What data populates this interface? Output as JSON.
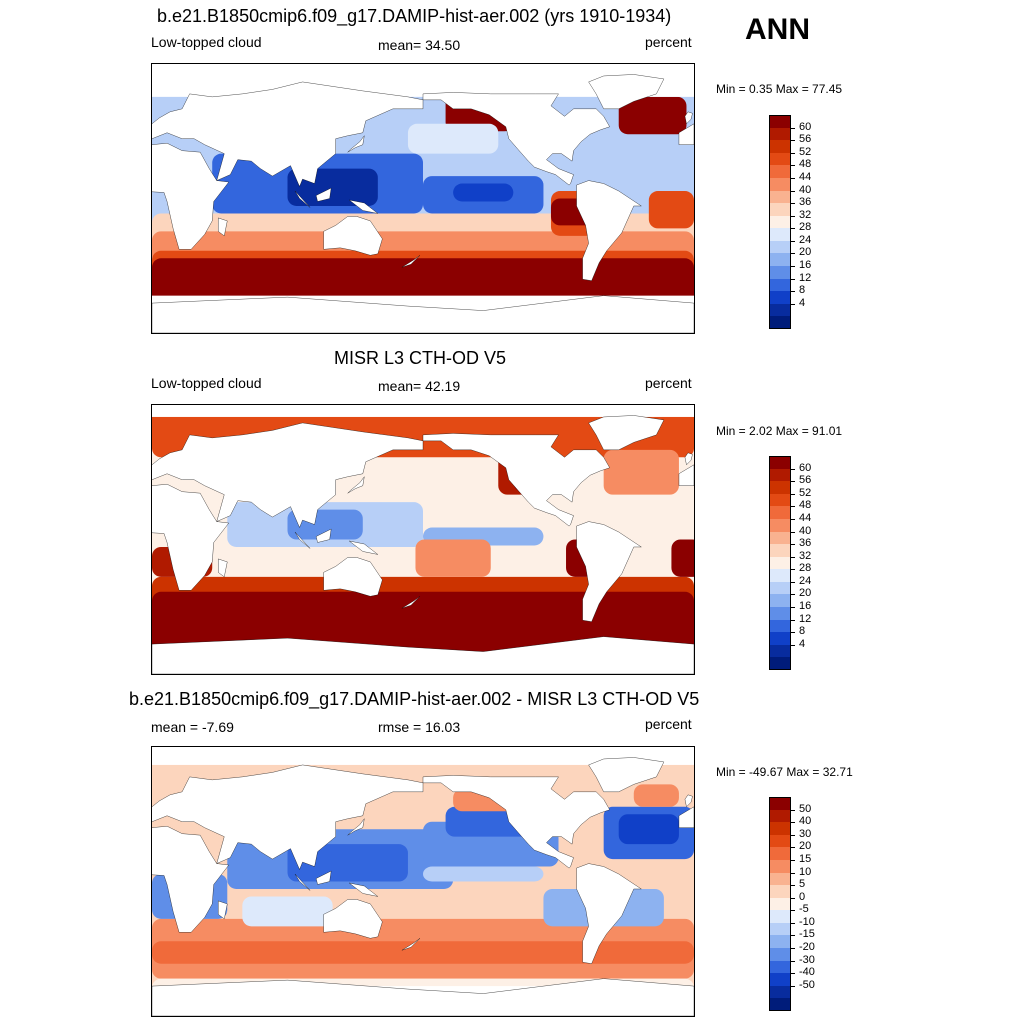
{
  "season": "ANN",
  "panels": [
    {
      "title": "b.e21.B1850cmip6.f09_g17.DAMIP-hist-aer.002 (yrs 1910-1934)",
      "left_label": "Low-topped cloud",
      "center_label": "mean=  34.50",
      "right_label": "percent",
      "minmax": "Min =   0.35 Max =  77.45",
      "colorbar": {
        "labels": [
          "60",
          "56",
          "52",
          "48",
          "44",
          "40",
          "36",
          "32",
          "28",
          "24",
          "20",
          "16",
          "12",
          "8",
          "4"
        ],
        "colors": [
          "#8b0000",
          "#b01a00",
          "#cc3300",
          "#e34a14",
          "#f06a3a",
          "#f68c62",
          "#f9b290",
          "#fcd5bd",
          "#fdf0e6",
          "#dde9fb",
          "#b7cff7",
          "#8db2f0",
          "#5f8ee8",
          "#3366dd",
          "#1040c8",
          "#082c9e",
          "#001c7a"
        ]
      },
      "map": {
        "variant": "model"
      }
    },
    {
      "title": "MISR L3 CTH-OD V5",
      "left_label": "Low-topped cloud",
      "center_label": "mean=  42.19",
      "right_label": "percent",
      "minmax": "Min =   2.02 Max =  91.01",
      "colorbar": {
        "labels": [
          "60",
          "56",
          "52",
          "48",
          "44",
          "40",
          "36",
          "32",
          "28",
          "24",
          "20",
          "16",
          "12",
          "8",
          "4"
        ],
        "colors": [
          "#8b0000",
          "#b01a00",
          "#cc3300",
          "#e34a14",
          "#f06a3a",
          "#f68c62",
          "#f9b290",
          "#fcd5bd",
          "#fdf0e6",
          "#dde9fb",
          "#b7cff7",
          "#8db2f0",
          "#5f8ee8",
          "#3366dd",
          "#1040c8",
          "#082c9e",
          "#001c7a"
        ]
      },
      "map": {
        "variant": "obs"
      }
    },
    {
      "title": "b.e21.B1850cmip6.f09_g17.DAMIP-hist-aer.002 - MISR L3 CTH-OD V5",
      "left_label": "mean =  -7.69",
      "center_label": "rmse =  16.03",
      "right_label": "percent",
      "minmax": "Min = -49.67 Max =  32.71",
      "colorbar": {
        "labels": [
          "50",
          "40",
          "30",
          "20",
          "15",
          "10",
          "5",
          "0",
          "-5",
          "-10",
          "-15",
          "-20",
          "-30",
          "-40",
          "-50"
        ],
        "colors": [
          "#8b0000",
          "#b01a00",
          "#cc3300",
          "#e34a14",
          "#f06a3a",
          "#f68c62",
          "#f9b290",
          "#fcd5bd",
          "#fdf0e6",
          "#dde9fb",
          "#b7cff7",
          "#8db2f0",
          "#5f8ee8",
          "#3366dd",
          "#1040c8",
          "#082c9e",
          "#001c7a"
        ]
      },
      "map": {
        "variant": "diff"
      }
    }
  ]
}
